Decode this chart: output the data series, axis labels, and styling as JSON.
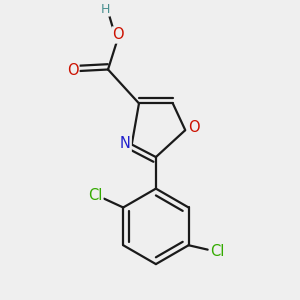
{
  "background_color": "#efefef",
  "bond_color": "#1a1a1a",
  "bond_width": 1.6,
  "atom_colors": {
    "C": "#1a1a1a",
    "H": "#4a9090",
    "O": "#cc1100",
    "N": "#2020cc",
    "Cl": "#33aa00"
  },
  "font_size": 10.5
}
